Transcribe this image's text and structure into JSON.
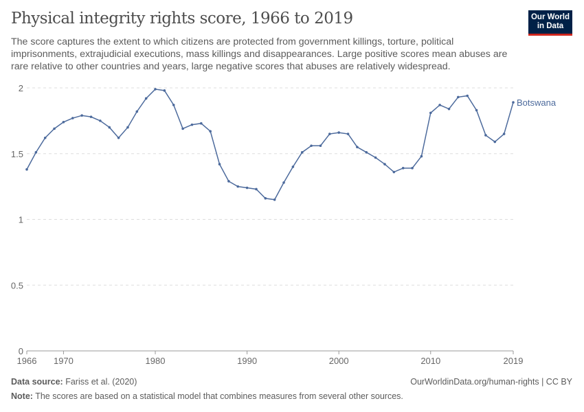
{
  "header": {
    "title": "Physical integrity rights score, 1966 to 2019",
    "subtitle": "The score captures the extent to which citizens are protected from government killings, torture, political imprisonments, extrajudicial executions, mass killings and disappearances. Large positive scores mean abuses are rare relative to other countries and years, large negative scores that abuses are relatively widespread.",
    "logo_line1": "Our World",
    "logo_line2": "in Data"
  },
  "footer": {
    "source_label": "Data source:",
    "source": "Fariss et al. (2020)",
    "url": "OurWorldinData.org/human-rights | CC BY",
    "note_label": "Note:",
    "note": "The scores are based on a statistical model that combines measures from several other sources."
  },
  "colors": {
    "series": "#4c6a9c",
    "grid": "#dddddd",
    "text": "#666666"
  },
  "chart_data": {
    "type": "line",
    "title": "Physical integrity rights score, 1966 to 2019",
    "xlabel": "",
    "ylabel": "",
    "xlim": [
      1966,
      2019
    ],
    "ylim": [
      0,
      2
    ],
    "grid": "horizontal dashed",
    "x_ticks": [
      "1966",
      "1970",
      "1980",
      "1990",
      "2000",
      "2010",
      "2019"
    ],
    "y_ticks": [
      "0",
      "0.5",
      "1",
      "1.5",
      "2"
    ],
    "legend": "inline-right",
    "x": [
      1966,
      1967,
      1968,
      1969,
      1970,
      1971,
      1972,
      1973,
      1974,
      1975,
      1976,
      1977,
      1978,
      1979,
      1980,
      1981,
      1982,
      1983,
      1984,
      1985,
      1986,
      1987,
      1988,
      1989,
      1990,
      1991,
      1992,
      1993,
      1994,
      1995,
      1996,
      1997,
      1998,
      1999,
      2000,
      2001,
      2002,
      2003,
      2004,
      2005,
      2006,
      2007,
      2008,
      2009,
      2010,
      2011,
      2012,
      2013,
      2014,
      2015,
      2016,
      2017,
      2018,
      2019
    ],
    "series": [
      {
        "name": "Botswana",
        "values": [
          1.38,
          1.51,
          1.62,
          1.69,
          1.74,
          1.77,
          1.79,
          1.78,
          1.75,
          1.7,
          1.62,
          1.7,
          1.82,
          1.92,
          1.99,
          1.98,
          1.87,
          1.69,
          1.72,
          1.73,
          1.67,
          1.42,
          1.29,
          1.25,
          1.24,
          1.23,
          1.16,
          1.15,
          1.28,
          1.4,
          1.51,
          1.56,
          1.56,
          1.65,
          1.66,
          1.65,
          1.55,
          1.51,
          1.47,
          1.42,
          1.36,
          1.39,
          1.39,
          1.48,
          1.81,
          1.87,
          1.84,
          1.93,
          1.94,
          1.83,
          1.64,
          1.59,
          1.65,
          1.89
        ]
      }
    ]
  }
}
